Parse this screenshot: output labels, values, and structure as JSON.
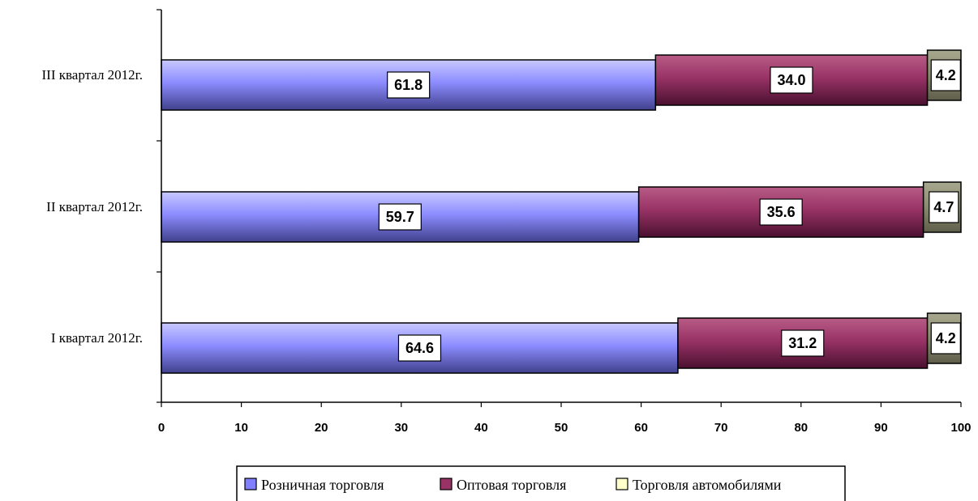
{
  "chart_data": {
    "type": "bar",
    "orientation": "horizontal",
    "stacked": true,
    "categories": [
      "I квартал 2012г.",
      "II  квартал 2012г.",
      "III квартал 2012г."
    ],
    "series": [
      {
        "name": "Розничная торговля",
        "values": [
          64.6,
          59.7,
          61.8
        ],
        "color": "#8080ff"
      },
      {
        "name": "Оптовая торговля",
        "values": [
          31.2,
          35.6,
          34.0
        ],
        "color": "#993366"
      },
      {
        "name": "Торговля автомобилями",
        "values": [
          4.2,
          4.7,
          4.2
        ],
        "color": "#ffffcc"
      }
    ],
    "xlim": [
      0,
      100
    ],
    "xticks": [
      0,
      10,
      20,
      30,
      40,
      50,
      60,
      70,
      80,
      90,
      100
    ],
    "grid": false,
    "legend_position": "bottom"
  }
}
